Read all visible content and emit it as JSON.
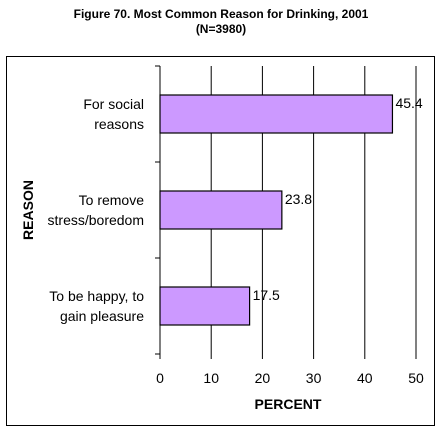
{
  "chart_data": {
    "type": "bar",
    "orientation": "horizontal",
    "title": "Figure 70. Most Common Reason for Drinking, 2001",
    "subtitle": "(N=3980)",
    "xlabel": "PERCENT",
    "ylabel": "REASON",
    "categories": [
      [
        "For social",
        "reasons"
      ],
      [
        "To remove",
        "stress/boredom"
      ],
      [
        "To be happy, to",
        "gain pleasure"
      ]
    ],
    "values": [
      45.4,
      23.8,
      17.5
    ],
    "data_labels": [
      "45.4",
      "23.8",
      "17.5"
    ],
    "xlim": [
      0,
      50
    ],
    "xticks": [
      "0",
      "10",
      "20",
      "30",
      "40",
      "50"
    ],
    "grid": "vertical",
    "bar_color": "#cc99ff",
    "bar_edge_color": "#000000",
    "grid_color": "#000000"
  }
}
